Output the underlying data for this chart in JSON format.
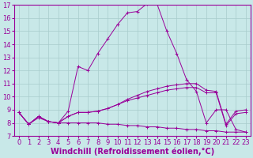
{
  "xlabel": "Windchill (Refroidissement éolien,°C)",
  "background_color": "#c8e8e8",
  "line_color": "#990099",
  "xlim": [
    -0.5,
    23.5
  ],
  "ylim": [
    7,
    17
  ],
  "yticks": [
    7,
    8,
    9,
    10,
    11,
    12,
    13,
    14,
    15,
    16,
    17
  ],
  "xticks": [
    0,
    1,
    2,
    3,
    4,
    5,
    6,
    7,
    8,
    9,
    10,
    11,
    12,
    13,
    14,
    15,
    16,
    17,
    18,
    19,
    20,
    21,
    22,
    23
  ],
  "line1_x": [
    0,
    1,
    2,
    3,
    4,
    5,
    6,
    7,
    8,
    9,
    10,
    11,
    12,
    13,
    14,
    15,
    16,
    17,
    18,
    19,
    20,
    21,
    22,
    23
  ],
  "line1_y": [
    8.8,
    7.9,
    8.5,
    8.1,
    8.0,
    8.9,
    12.3,
    12.0,
    13.3,
    14.4,
    15.5,
    16.4,
    16.5,
    17.1,
    17.1,
    15.0,
    13.3,
    11.3,
    10.4,
    8.0,
    9.0,
    9.0,
    7.5,
    7.3
  ],
  "line2_x": [
    0,
    1,
    2,
    3,
    4,
    5,
    6,
    7,
    8,
    9,
    10,
    11,
    12,
    13,
    14,
    15,
    16,
    17,
    18,
    19,
    20,
    21,
    22,
    23
  ],
  "line2_y": [
    8.8,
    7.9,
    8.5,
    8.1,
    8.0,
    8.5,
    8.8,
    8.8,
    8.9,
    9.1,
    9.4,
    9.8,
    10.1,
    10.4,
    10.6,
    10.8,
    10.9,
    11.0,
    11.0,
    10.5,
    10.4,
    7.9,
    8.9,
    9.0
  ],
  "line3_x": [
    0,
    1,
    2,
    3,
    4,
    5,
    6,
    7,
    8,
    9,
    10,
    11,
    12,
    13,
    14,
    15,
    16,
    17,
    18,
    19,
    20,
    21,
    22,
    23
  ],
  "line3_y": [
    8.8,
    7.9,
    8.5,
    8.1,
    8.0,
    8.5,
    8.8,
    8.8,
    8.9,
    9.1,
    9.4,
    9.7,
    9.9,
    10.1,
    10.3,
    10.5,
    10.6,
    10.7,
    10.7,
    10.3,
    10.3,
    7.8,
    8.7,
    8.8
  ],
  "line4_x": [
    0,
    1,
    2,
    3,
    4,
    5,
    6,
    7,
    8,
    9,
    10,
    11,
    12,
    13,
    14,
    15,
    16,
    17,
    18,
    19,
    20,
    21,
    22,
    23
  ],
  "line4_y": [
    8.8,
    7.9,
    8.4,
    8.1,
    8.0,
    8.0,
    8.0,
    8.0,
    8.0,
    7.9,
    7.9,
    7.8,
    7.8,
    7.7,
    7.7,
    7.6,
    7.6,
    7.5,
    7.5,
    7.4,
    7.4,
    7.3,
    7.3,
    7.3
  ],
  "xlabel_fontsize": 7,
  "tick_fontsize": 6,
  "grid_color": "#a8cccc"
}
